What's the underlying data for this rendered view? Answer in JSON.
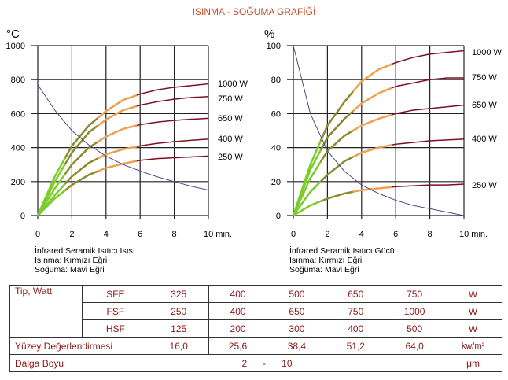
{
  "title": "ISINMA - SOĞUMA GRAFİĞİ",
  "chart_data": [
    {
      "type": "line",
      "ylabel": "°C",
      "xlabel": "min.",
      "xlim": [
        0,
        10
      ],
      "ylim": [
        0,
        1000
      ],
      "xticks": [
        0,
        2,
        4,
        6,
        8,
        10
      ],
      "yticks": [
        0,
        200,
        400,
        600,
        800,
        1000
      ],
      "grid": true,
      "caption": [
        "İnfrared Seramik Isıtıcı Isısı",
        "Isınma: Kırmızı Eğri",
        "Soğuma: Mavi Eğri"
      ],
      "x": [
        0,
        1,
        2,
        3,
        4,
        5,
        6,
        7,
        8,
        9,
        10
      ],
      "series": [
        {
          "name": "1000 W",
          "values": [
            0,
            230,
            410,
            530,
            615,
            680,
            715,
            740,
            755,
            765,
            775
          ]
        },
        {
          "name": "750 W",
          "values": [
            0,
            200,
            370,
            490,
            565,
            620,
            650,
            670,
            685,
            695,
            700
          ]
        },
        {
          "name": "650 W",
          "values": [
            0,
            160,
            300,
            400,
            465,
            510,
            535,
            550,
            560,
            567,
            572
          ]
        },
        {
          "name": "400 W",
          "values": [
            0,
            120,
            230,
            310,
            360,
            390,
            410,
            425,
            435,
            443,
            450
          ]
        },
        {
          "name": "250 W",
          "values": [
            0,
            100,
            180,
            240,
            280,
            305,
            325,
            335,
            340,
            345,
            350
          ]
        },
        {
          "values": [
            770,
            620,
            500,
            415,
            350,
            300,
            262,
            228,
            200,
            172,
            150
          ],
          "color": "#4a4a8a",
          "kind": "cooling"
        }
      ]
    },
    {
      "type": "line",
      "ylabel": "%",
      "xlabel": "min.",
      "xlim": [
        0,
        10
      ],
      "ylim": [
        0,
        100
      ],
      "xticks": [
        0,
        2,
        4,
        6,
        8,
        10
      ],
      "yticks": [
        0,
        20,
        40,
        60,
        80,
        100
      ],
      "grid": true,
      "caption": [
        "İnfrared Seramik Isıtıcı Gücü",
        "Isınma: Kırmızı Eğri",
        "Soğuma: Mavi Eğri"
      ],
      "x": [
        0,
        1,
        2,
        3,
        4,
        5,
        6,
        7,
        8,
        9,
        10
      ],
      "series": [
        {
          "name": "1000 W",
          "values": [
            0,
            30,
            53,
            67,
            79,
            86,
            90,
            93,
            95,
            96,
            97
          ]
        },
        {
          "name": "750 W",
          "values": [
            0,
            27,
            46,
            57,
            66,
            72,
            76,
            78,
            80,
            81,
            81
          ]
        },
        {
          "name": "650 W",
          "values": [
            0,
            22,
            38,
            47,
            53,
            57,
            60,
            62,
            63,
            64,
            65
          ]
        },
        {
          "name": "400 W",
          "values": [
            0,
            14,
            24,
            32,
            37,
            40,
            42,
            43,
            44,
            44.5,
            45
          ]
        },
        {
          "name": "250 W",
          "values": [
            0,
            6,
            10,
            13,
            15,
            16,
            17,
            17.5,
            18,
            18,
            18.5
          ]
        },
        {
          "values": [
            100,
            60,
            38,
            26,
            18,
            13,
            9,
            6,
            4,
            2,
            0
          ],
          "color": "#4a4a8a",
          "kind": "cooling"
        }
      ]
    }
  ],
  "colors": {
    "start": "#7ccc2a",
    "mid": "#8a8a30",
    "warm": "#f0a050",
    "hot": "#7a1020",
    "title": "#c0502a",
    "table_text": "#8b1a1a"
  },
  "table": {
    "tip_label": "Tip, Watt",
    "rows": [
      {
        "type": "SFE",
        "values": [
          "325",
          "400",
          "500",
          "650",
          "750"
        ],
        "unit": "W"
      },
      {
        "type": "FSF",
        "values": [
          "250",
          "400",
          "650",
          "750",
          "1000"
        ],
        "unit": "W"
      },
      {
        "type": "HSF",
        "values": [
          "125",
          "200",
          "300",
          "400",
          "500"
        ],
        "unit": "W"
      }
    ],
    "surface": {
      "label": "Yüzey Değerlendirmesi",
      "values": [
        "16,0",
        "25,6",
        "38,4",
        "51,2",
        "64,0"
      ],
      "unit": "kw/m²"
    },
    "wave": {
      "label": "Dalga Boyu",
      "from": "2",
      "dash": "-",
      "to": "10",
      "unit": "μm"
    }
  }
}
